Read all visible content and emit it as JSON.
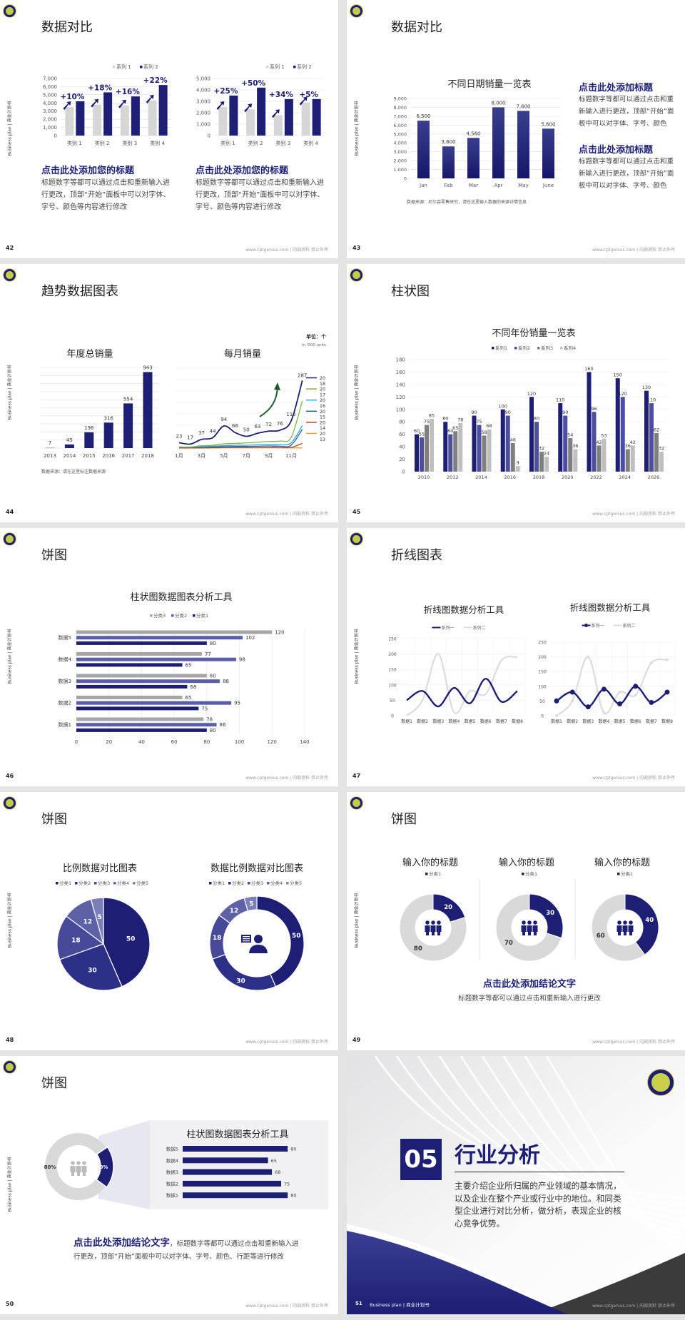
{
  "common": {
    "sidebar_text": "Business plan | 商业计划书",
    "footer_text": "www.cptgenius.com | 内部资料 禁止外传"
  },
  "colors": {
    "navy": "#1c1f73",
    "navy_mid": "#4b4f9e",
    "gray_dark": "#7f7f7f",
    "gray_light": "#c9c9c9",
    "accent_green": "#1e5e2c"
  },
  "slides": [
    {
      "page": "42",
      "title": "数据对比",
      "blocks": [
        {
          "heading": "点击此处添加您的标题",
          "body": "标题数字等都可以通过点击和重新输入进行更改，顶部“开始”面板中可以对字体、字号、颜色等内容进行修改"
        },
        {
          "heading": "点击此处添加您的标题",
          "body": "标题数字等都可以通过点击和重新输入进行更改，顶部“开始”面板中可以对字体、字号、颜色等内容进行修改"
        }
      ]
    },
    {
      "page": "43",
      "title": "数据对比",
      "source": "数据来源：尼尔森零售研究，请在这里输入数据的来源详情信息",
      "blocks": [
        {
          "heading": "点击此处添加标题",
          "body": "标题数字等都可以通过点击和重新输入进行更改，顶部“开始”面板中可以对字体、字号、颜色"
        },
        {
          "heading": "点击此处添加标题",
          "body": "标题数字等都可以通过点击和重新输入进行更改，顶部“开始”面板中可以对字体、字号、颜色"
        }
      ]
    },
    {
      "page": "44",
      "title": "趋势数据图表",
      "unit": "单位：个",
      "unit_en": "in '000 units",
      "source": "数据来源：请在这里标注数据来源"
    },
    {
      "page": "45",
      "title": "柱状图"
    },
    {
      "page": "46",
      "title": "饼图"
    },
    {
      "page": "47",
      "title": "折线图表"
    },
    {
      "page": "48",
      "title": "饼图"
    },
    {
      "page": "49",
      "title": "饼图",
      "conclusion": "点击此处添加结论文字",
      "conclusion_body": "标题数字等都可以通过点击和重新输入进行更改"
    },
    {
      "page": "50",
      "title": "饼图",
      "conclusion": "点击此处添加结论文字",
      "conclusion_body": "，标题数字等都可以通过点击和重新输入进",
      "conclusion_body2": "行更改，顶部“开始”面板中可以对字体、字号、颜色、行距等进行修改"
    },
    {
      "page": "51",
      "number": "05",
      "title": "行业分析",
      "body": "主要介绍企业所归属的产业领域的基本情况，以及企业在整个产业或行业中的地位。和同类型企业进行对比分析，做分析，表现企业的核心竞争优势。",
      "footer_label": "Business plan | 商业计划书"
    }
  ],
  "chart_data": [
    {
      "id": "s42-left",
      "type": "bar",
      "categories": [
        "类别 1",
        "类别 2",
        "类别 3",
        "类别 4"
      ],
      "series": [
        {
          "name": "系列 1",
          "values": [
            3500,
            3800,
            3700,
            4300
          ]
        },
        {
          "name": "系列 2",
          "values": [
            4200,
            5300,
            4800,
            6200
          ]
        }
      ],
      "annotations": [
        "+10%",
        "+18%",
        "+16%",
        "+22%"
      ],
      "ylim": [
        0,
        7000
      ],
      "yticks": [
        "0",
        "1,000",
        "2,000",
        "3,000",
        "4,000",
        "5,000",
        "6,000",
        "7,000"
      ],
      "legend": "top-right",
      "grid": true
    },
    {
      "id": "s42-right",
      "type": "bar",
      "categories": [
        "类别 1",
        "类别 2",
        "类别 3",
        "类别 4"
      ],
      "series": [
        {
          "name": "系列 1",
          "values": [
            2500,
            2300,
            1800,
            2900
          ]
        },
        {
          "name": "系列 2",
          "values": [
            3500,
            4200,
            3200,
            3200
          ]
        }
      ],
      "annotations": [
        "+25%",
        "+50%",
        "+34%",
        "+5%"
      ],
      "ylim": [
        0,
        5000
      ],
      "yticks": [
        "0",
        "1,000",
        "2,000",
        "3,000",
        "4,000",
        "5,000"
      ],
      "legend": "top-right",
      "grid": true
    },
    {
      "id": "s43",
      "type": "bar",
      "title": "不同日期销量一览表",
      "categories": [
        "Jan",
        "Feb",
        "Mar",
        "Apr",
        "May",
        "June"
      ],
      "values": [
        6500,
        3600,
        4560,
        8000,
        7600,
        5600
      ],
      "labels": [
        "6,500",
        "3,600",
        "4,560",
        "8,000",
        "7,600",
        "5,600"
      ],
      "ylim": [
        0,
        9000
      ],
      "yticks": [
        "0",
        "1,000",
        "2,000",
        "3,000",
        "4,000",
        "5,000",
        "6,000",
        "7,000",
        "8,000",
        "9,000"
      ],
      "grid": true
    },
    {
      "id": "s44-left",
      "type": "bar",
      "title": "年度总销量",
      "categories": [
        "2013",
        "2014",
        "2015",
        "2016",
        "2017",
        "2018"
      ],
      "values": [
        7,
        45,
        196,
        316,
        554,
        943
      ],
      "ylim": [
        0,
        1000
      ],
      "grid": true
    },
    {
      "id": "s44-right",
      "type": "line",
      "title": "每月销量",
      "x": [
        "1月",
        "2月",
        "3月",
        "4月",
        "5月",
        "6月",
        "7月",
        "8月",
        "9月",
        "10月",
        "11月",
        "12月"
      ],
      "xticks": [
        "1月",
        "3月",
        "5月",
        "7月",
        "9月",
        "11月"
      ],
      "series": [
        {
          "values": [
            23,
            17,
            37,
            44,
            94,
            66,
            50,
            63,
            72,
            76,
            115,
            287
          ],
          "color": "#1c1f73",
          "labeled": true
        },
        {
          "values": [
            5,
            5,
            10,
            12,
            18,
            20,
            22,
            25,
            28,
            30,
            45,
            200
          ],
          "color": "#7ab648"
        },
        {
          "values": [
            4,
            4,
            6,
            8,
            10,
            12,
            12,
            14,
            16,
            14,
            22,
            95
          ],
          "color": "#2aa8d8"
        },
        {
          "values": [
            3,
            3,
            4,
            5,
            6,
            7,
            7,
            8,
            9,
            8,
            12,
            80
          ],
          "color": "#1f5fa8"
        },
        {
          "values": [
            1,
            1,
            1,
            2,
            2,
            2,
            2,
            2,
            3,
            2,
            3,
            20
          ],
          "color": "#b5482a"
        },
        {
          "values": [
            0,
            0,
            0,
            0,
            1,
            1,
            1,
            1,
            1,
            1,
            1,
            1
          ],
          "color": "#f0a020"
        }
      ],
      "legend_labels": [
        "20",
        "18",
        "20",
        "17",
        "20",
        "16",
        "20",
        "15",
        "20",
        "14",
        "20",
        "13"
      ],
      "legend": "right",
      "ylim": [
        0,
        340
      ],
      "grid": true
    },
    {
      "id": "s45",
      "type": "bar",
      "title": "不同年份销量一览表",
      "categories": [
        "2010",
        "2012",
        "2014",
        "2016",
        "2018",
        "2020",
        "2022",
        "2024",
        "2026"
      ],
      "series": [
        {
          "name": "系列1",
          "values": [
            60,
            80,
            90,
            100,
            120,
            110,
            160,
            150,
            130
          ]
        },
        {
          "name": "系列2",
          "values": [
            55,
            60,
            75,
            90,
            80,
            90,
            96,
            120,
            110
          ]
        },
        {
          "name": "系列3",
          "values": [
            75,
            65,
            58,
            46,
            32,
            54,
            42,
            36,
            62
          ]
        },
        {
          "name": "系列4",
          "values": [
            85,
            78,
            68,
            9,
            24,
            36,
            53,
            42,
            32
          ]
        }
      ],
      "ylim": [
        0,
        180
      ],
      "yticks": [
        "0",
        "20",
        "40",
        "60",
        "80",
        "100",
        "120",
        "140",
        "160",
        "180"
      ],
      "legend": "top",
      "grid": true
    },
    {
      "id": "s46",
      "type": "bar",
      "orientation": "horizontal",
      "title": "柱状图数据图表分析工具",
      "categories": [
        "数据5",
        "数据4",
        "数据3",
        "数据2",
        "数据1"
      ],
      "series": [
        {
          "name": "分类3",
          "values": [
            120,
            77,
            80,
            65,
            78
          ]
        },
        {
          "name": "分类2",
          "values": [
            102,
            98,
            88,
            95,
            86
          ]
        },
        {
          "name": "分类1",
          "values": [
            80,
            65,
            68,
            75,
            80
          ]
        }
      ],
      "xlim": [
        0,
        140
      ],
      "xticks": [
        "0",
        "20",
        "40",
        "60",
        "80",
        "100",
        "120",
        "140"
      ],
      "legend": "top",
      "grid": true
    },
    {
      "id": "s47-left",
      "type": "line",
      "title": "折线图数据分析工具",
      "x": [
        "数据1",
        "数据2",
        "数据3",
        "数据4",
        "数据5",
        "数据6",
        "数据7",
        "数据8"
      ],
      "series": [
        {
          "name": "系列一",
          "values": [
            50,
            80,
            30,
            90,
            40,
            120,
            45,
            80
          ]
        },
        {
          "name": "系列二",
          "values": [
            0,
            50,
            200,
            10,
            80,
            70,
            180,
            190
          ]
        }
      ],
      "ylim": [
        0,
        250
      ],
      "yticks": [
        "0",
        "50",
        "100",
        "150",
        "200",
        "250"
      ],
      "markers": false,
      "legend": "top",
      "grid": true
    },
    {
      "id": "s47-right",
      "type": "line",
      "title": "折线图数据分析工具",
      "x": [
        "数据1",
        "数据2",
        "数据3",
        "数据4",
        "数据5",
        "数据6",
        "数据7",
        "数据8"
      ],
      "series": [
        {
          "name": "系列一",
          "values": [
            50,
            80,
            30,
            90,
            40,
            100,
            45,
            80
          ]
        },
        {
          "name": "系列二",
          "values": [
            0,
            50,
            200,
            10,
            80,
            70,
            180,
            190
          ]
        }
      ],
      "ylim": [
        0,
        250
      ],
      "yticks": [
        "0",
        "50",
        "100",
        "150",
        "200",
        "250"
      ],
      "markers": true,
      "legend": "top",
      "grid": true
    },
    {
      "id": "s48-pie",
      "type": "pie",
      "title": "比例数据对比图表",
      "categories": [
        "分类1",
        "分类2",
        "分类3",
        "分类4",
        "分类5"
      ],
      "values": [
        50,
        30,
        18,
        12,
        5
      ],
      "colors": [
        "#1c1f73",
        "#2c3086",
        "#464a98",
        "#5d61a6",
        "#7b7eb8"
      ],
      "legend": "top"
    },
    {
      "id": "s48-donut",
      "type": "pie",
      "donut": true,
      "title": "数据比例数据对比图表",
      "categories": [
        "分类1",
        "分类2",
        "分类3",
        "分类4",
        "分类5"
      ],
      "values": [
        50,
        30,
        18,
        12,
        5
      ],
      "colors": [
        "#1c1f73",
        "#2c3086",
        "#464a98",
        "#5d61a6",
        "#7b7eb8"
      ],
      "legend": "top",
      "center_icon": "customer-service-icon"
    },
    {
      "id": "s49-a",
      "type": "pie",
      "donut": true,
      "title": "输入你的标题",
      "legend_label": "分类1",
      "values": [
        20,
        80
      ],
      "center_icon": "people-icon"
    },
    {
      "id": "s49-b",
      "type": "pie",
      "donut": true,
      "title": "输入你的标题",
      "legend_label": "分类1",
      "values": [
        30,
        70
      ],
      "center_icon": "people-icon"
    },
    {
      "id": "s49-c",
      "type": "pie",
      "donut": true,
      "title": "输入你的标题",
      "legend_label": "分类1",
      "values": [
        40,
        60
      ],
      "center_icon": "people-icon"
    },
    {
      "id": "s50-donut",
      "type": "pie",
      "donut": true,
      "values": [
        20,
        80
      ],
      "labels": [
        "20%",
        "80%"
      ],
      "center_icon": "team-icon"
    },
    {
      "id": "s50-bar",
      "type": "bar",
      "orientation": "horizontal",
      "title": "柱状图数据图表分析工具",
      "categories": [
        "数据5",
        "数据4",
        "数据3",
        "数据2",
        "数据1"
      ],
      "values": [
        80,
        65,
        68,
        75,
        80
      ]
    }
  ]
}
